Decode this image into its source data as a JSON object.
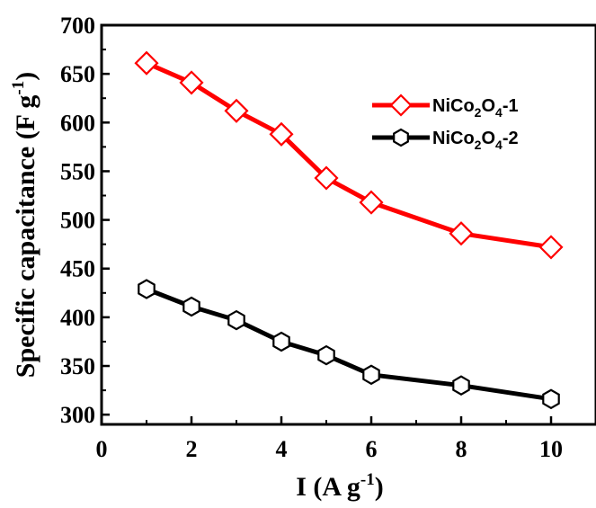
{
  "chart_data": {
    "type": "line",
    "xlabel": "I (A g",
    "xlabel_sup": "-1",
    "xlabel_close": ")",
    "ylabel": "Specific capacitance (F g",
    "ylabel_sup": "-1",
    "ylabel_close": ")",
    "xlim": [
      0,
      11
    ],
    "ylim": [
      290,
      700
    ],
    "xticks": [
      0,
      2,
      4,
      6,
      8,
      10
    ],
    "yticks": [
      300,
      350,
      400,
      450,
      500,
      550,
      600,
      650,
      700
    ],
    "grid": false,
    "legend_position": "top-right",
    "series": [
      {
        "name_parts": [
          "NiCo",
          "2",
          "O",
          "4",
          "-1"
        ],
        "color": "#ff0000",
        "marker": "diamond",
        "x": [
          1,
          2,
          3,
          4,
          5,
          6,
          8,
          10
        ],
        "y": [
          661,
          641,
          612,
          588,
          543,
          518,
          486,
          472
        ]
      },
      {
        "name_parts": [
          "NiCo",
          "2",
          "O",
          "4",
          "-2"
        ],
        "color": "#000000",
        "marker": "hexagon",
        "x": [
          1,
          2,
          3,
          4,
          5,
          6,
          8,
          10
        ],
        "y": [
          429,
          411,
          397,
          375,
          361,
          341,
          330,
          316
        ]
      }
    ]
  }
}
